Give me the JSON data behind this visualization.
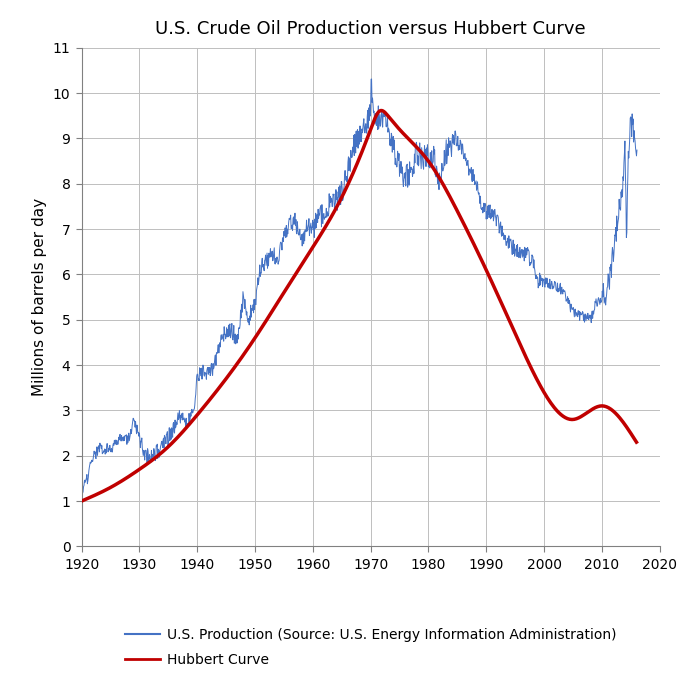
{
  "title": "U.S. Crude Oil Production versus Hubbert Curve",
  "ylabel": "Millions of barrels per day",
  "xlim": [
    1920,
    2020
  ],
  "ylim": [
    0,
    11
  ],
  "yticks": [
    0,
    1,
    2,
    3,
    4,
    5,
    6,
    7,
    8,
    9,
    10,
    11
  ],
  "xticks": [
    1920,
    1930,
    1940,
    1950,
    1960,
    1970,
    1980,
    1990,
    2000,
    2010,
    2020
  ],
  "production_color": "#4472C4",
  "hubbert_color": "#C00000",
  "production_linewidth": 0.7,
  "hubbert_linewidth": 2.5,
  "legend_production": "U.S. Production (Source: U.S. Energy Information Administration)",
  "legend_hubbert": "Hubbert Curve",
  "background_color": "#ffffff",
  "grid_color": "#bfbfbf",
  "hubbert_peak_year": 1971.5,
  "hubbert_peak_value": 9.6,
  "hubbert_b": 0.057,
  "hubbert_points": [
    [
      1920,
      1.0
    ],
    [
      1925,
      1.3
    ],
    [
      1930,
      1.7
    ],
    [
      1935,
      2.2
    ],
    [
      1940,
      2.9
    ],
    [
      1945,
      3.7
    ],
    [
      1950,
      4.6
    ],
    [
      1955,
      5.6
    ],
    [
      1960,
      6.6
    ],
    [
      1965,
      7.7
    ],
    [
      1970,
      9.2
    ],
    [
      1971.5,
      9.6
    ],
    [
      1973,
      9.5
    ],
    [
      1975,
      9.2
    ],
    [
      1980,
      8.5
    ],
    [
      1985,
      7.4
    ],
    [
      1990,
      6.1
    ],
    [
      1995,
      4.7
    ],
    [
      2000,
      3.4
    ],
    [
      2005,
      2.8
    ],
    [
      2010,
      3.1
    ],
    [
      2016,
      2.3
    ]
  ],
  "production_data": [
    [
      1920.0,
      1.2
    ],
    [
      1920.5,
      1.35
    ],
    [
      1921.0,
      1.5
    ],
    [
      1921.5,
      1.75
    ],
    [
      1922.0,
      1.95
    ],
    [
      1922.5,
      2.05
    ],
    [
      1923.0,
      2.2
    ],
    [
      1923.5,
      2.15
    ],
    [
      1924.0,
      2.1
    ],
    [
      1924.5,
      2.18
    ],
    [
      1925.0,
      2.12
    ],
    [
      1925.5,
      2.2
    ],
    [
      1926.0,
      2.28
    ],
    [
      1926.5,
      2.35
    ],
    [
      1927.0,
      2.4
    ],
    [
      1927.5,
      2.38
    ],
    [
      1928.0,
      2.33
    ],
    [
      1928.5,
      2.55
    ],
    [
      1929.0,
      2.78
    ],
    [
      1929.5,
      2.6
    ],
    [
      1930.0,
      2.4
    ],
    [
      1930.5,
      2.2
    ],
    [
      1931.0,
      2.05
    ],
    [
      1931.5,
      2.0
    ],
    [
      1932.0,
      1.98
    ],
    [
      1932.5,
      2.02
    ],
    [
      1933.0,
      2.08
    ],
    [
      1933.5,
      2.15
    ],
    [
      1934.0,
      2.22
    ],
    [
      1934.5,
      2.3
    ],
    [
      1935.0,
      2.4
    ],
    [
      1935.5,
      2.52
    ],
    [
      1936.0,
      2.65
    ],
    [
      1936.5,
      2.78
    ],
    [
      1937.0,
      2.9
    ],
    [
      1937.5,
      2.82
    ],
    [
      1938.0,
      2.73
    ],
    [
      1938.5,
      2.82
    ],
    [
      1939.0,
      2.92
    ],
    [
      1939.5,
      3.2
    ],
    [
      1940.0,
      3.7
    ],
    [
      1940.5,
      3.8
    ],
    [
      1941.0,
      3.85
    ],
    [
      1941.5,
      3.84
    ],
    [
      1942.0,
      3.84
    ],
    [
      1942.5,
      3.92
    ],
    [
      1943.0,
      4.0
    ],
    [
      1943.5,
      4.25
    ],
    [
      1944.0,
      4.58
    ],
    [
      1944.5,
      4.65
    ],
    [
      1945.0,
      4.7
    ],
    [
      1945.5,
      4.72
    ],
    [
      1946.0,
      4.75
    ],
    [
      1946.5,
      4.65
    ],
    [
      1947.0,
      4.6
    ],
    [
      1947.5,
      5.05
    ],
    [
      1948.0,
      5.52
    ],
    [
      1948.5,
      5.28
    ],
    [
      1949.0,
      5.05
    ],
    [
      1949.5,
      5.2
    ],
    [
      1950.0,
      5.4
    ],
    [
      1950.5,
      5.78
    ],
    [
      1951.0,
      6.16
    ],
    [
      1951.5,
      6.21
    ],
    [
      1952.0,
      6.26
    ],
    [
      1952.5,
      6.36
    ],
    [
      1953.0,
      6.46
    ],
    [
      1953.5,
      6.4
    ],
    [
      1954.0,
      6.34
    ],
    [
      1954.5,
      6.58
    ],
    [
      1955.0,
      6.81
    ],
    [
      1955.5,
      6.98
    ],
    [
      1956.0,
      7.15
    ],
    [
      1956.5,
      7.16
    ],
    [
      1957.0,
      7.17
    ],
    [
      1957.5,
      6.97
    ],
    [
      1958.0,
      6.76
    ],
    [
      1958.5,
      6.9
    ],
    [
      1959.0,
      7.05
    ],
    [
      1959.5,
      7.04
    ],
    [
      1960.0,
      7.04
    ],
    [
      1960.5,
      7.1
    ],
    [
      1961.0,
      7.18
    ],
    [
      1961.5,
      7.26
    ],
    [
      1962.0,
      7.34
    ],
    [
      1962.5,
      7.44
    ],
    [
      1963.0,
      7.54
    ],
    [
      1963.5,
      7.57
    ],
    [
      1964.0,
      7.61
    ],
    [
      1964.5,
      7.7
    ],
    [
      1965.0,
      7.8
    ],
    [
      1965.5,
      8.05
    ],
    [
      1966.0,
      8.3
    ],
    [
      1966.5,
      8.55
    ],
    [
      1967.0,
      8.8
    ],
    [
      1967.5,
      8.95
    ],
    [
      1968.0,
      9.1
    ],
    [
      1968.5,
      9.17
    ],
    [
      1969.0,
      9.24
    ],
    [
      1969.5,
      9.44
    ],
    [
      1970.0,
      9.64
    ],
    [
      1970.1,
      10.15
    ],
    [
      1970.3,
      9.95
    ],
    [
      1970.5,
      9.5
    ],
    [
      1970.7,
      9.55
    ],
    [
      1971.0,
      9.46
    ],
    [
      1971.5,
      9.44
    ],
    [
      1972.0,
      9.44
    ],
    [
      1972.5,
      9.32
    ],
    [
      1973.0,
      9.21
    ],
    [
      1973.5,
      8.99
    ],
    [
      1974.0,
      8.77
    ],
    [
      1974.5,
      8.57
    ],
    [
      1975.0,
      8.38
    ],
    [
      1975.5,
      8.25
    ],
    [
      1976.0,
      8.13
    ],
    [
      1976.5,
      8.18
    ],
    [
      1977.0,
      8.24
    ],
    [
      1977.5,
      8.47
    ],
    [
      1978.0,
      8.71
    ],
    [
      1978.5,
      8.63
    ],
    [
      1979.0,
      8.55
    ],
    [
      1979.5,
      8.57
    ],
    [
      1980.0,
      8.6
    ],
    [
      1980.5,
      8.58
    ],
    [
      1981.0,
      8.57
    ],
    [
      1981.5,
      8.13
    ],
    [
      1982.0,
      8.1
    ],
    [
      1982.5,
      8.4
    ],
    [
      1983.0,
      8.69
    ],
    [
      1983.5,
      8.78
    ],
    [
      1984.0,
      8.88
    ],
    [
      1984.5,
      8.93
    ],
    [
      1985.0,
      8.97
    ],
    [
      1985.5,
      8.82
    ],
    [
      1986.0,
      8.68
    ],
    [
      1986.5,
      8.51
    ],
    [
      1987.0,
      8.35
    ],
    [
      1987.5,
      8.24
    ],
    [
      1988.0,
      8.14
    ],
    [
      1988.5,
      7.87
    ],
    [
      1989.0,
      7.61
    ],
    [
      1989.5,
      7.48
    ],
    [
      1990.0,
      7.36
    ],
    [
      1990.5,
      7.39
    ],
    [
      1991.0,
      7.42
    ],
    [
      1991.5,
      7.3
    ],
    [
      1992.0,
      7.17
    ],
    [
      1992.5,
      7.01
    ],
    [
      1993.0,
      6.85
    ],
    [
      1993.5,
      6.75
    ],
    [
      1994.0,
      6.66
    ],
    [
      1994.5,
      6.61
    ],
    [
      1995.0,
      6.56
    ],
    [
      1995.5,
      6.51
    ],
    [
      1996.0,
      6.47
    ],
    [
      1996.5,
      6.46
    ],
    [
      1997.0,
      6.45
    ],
    [
      1997.5,
      6.35
    ],
    [
      1998.0,
      6.25
    ],
    [
      1998.5,
      6.06
    ],
    [
      1999.0,
      5.88
    ],
    [
      1999.5,
      5.85
    ],
    [
      2000.0,
      5.82
    ],
    [
      2000.5,
      5.81
    ],
    [
      2001.0,
      5.8
    ],
    [
      2001.5,
      5.77
    ],
    [
      2002.0,
      5.74
    ],
    [
      2002.5,
      5.71
    ],
    [
      2003.0,
      5.68
    ],
    [
      2003.5,
      5.55
    ],
    [
      2004.0,
      5.42
    ],
    [
      2004.5,
      5.3
    ],
    [
      2005.0,
      5.18
    ],
    [
      2005.5,
      5.14
    ],
    [
      2006.0,
      5.1
    ],
    [
      2006.5,
      5.08
    ],
    [
      2007.0,
      5.06
    ],
    [
      2007.5,
      5.03
    ],
    [
      2008.0,
      5.0
    ],
    [
      2008.5,
      5.17
    ],
    [
      2009.0,
      5.35
    ],
    [
      2009.5,
      5.41
    ],
    [
      2010.0,
      5.48
    ],
    [
      2010.5,
      5.56
    ],
    [
      2011.0,
      5.65
    ],
    [
      2011.5,
      6.07
    ],
    [
      2012.0,
      6.49
    ],
    [
      2012.5,
      6.97
    ],
    [
      2013.0,
      7.45
    ],
    [
      2013.5,
      7.8
    ],
    [
      2014.0,
      8.71
    ],
    [
      2014.3,
      6.55
    ],
    [
      2014.5,
      8.3
    ],
    [
      2014.7,
      8.85
    ],
    [
      2015.0,
      9.43
    ],
    [
      2015.5,
      9.1
    ],
    [
      2015.7,
      9.2
    ],
    [
      2016.0,
      8.83
    ]
  ]
}
